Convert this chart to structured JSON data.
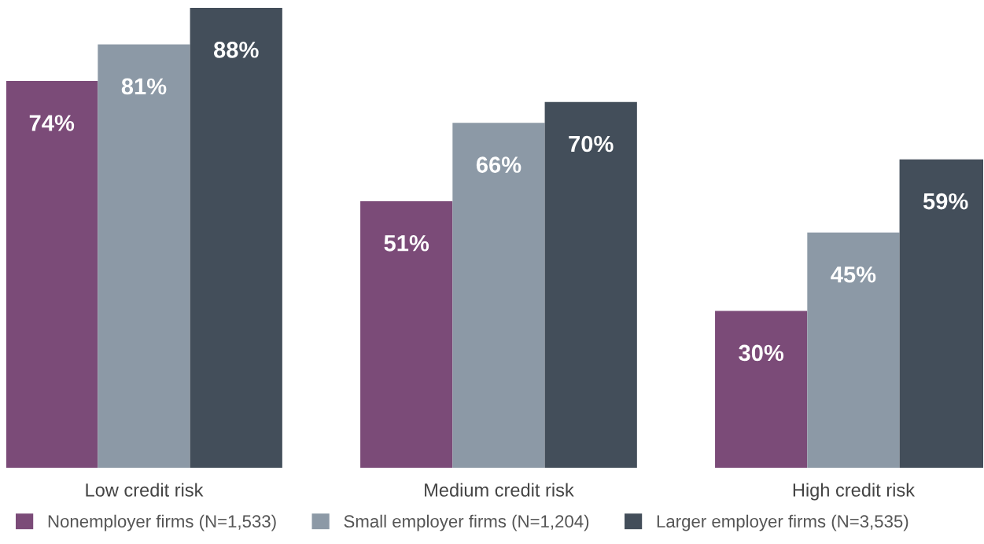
{
  "chart_data": {
    "type": "bar",
    "categories": [
      "Low credit risk",
      "Medium credit risk",
      "High credit risk"
    ],
    "series": [
      {
        "name": "Nonemployer firms (N=1,533)",
        "color": "#7b4b78",
        "values": [
          74,
          51,
          30
        ],
        "value_labels": [
          "74%",
          "51%",
          "30%"
        ]
      },
      {
        "name": "Small employer firms (N=1,204)",
        "color": "#8c99a6",
        "values": [
          81,
          66,
          45
        ],
        "value_labels": [
          "81%",
          "66%",
          "45%"
        ]
      },
      {
        "name": "Larger employer firms (N=3,535)",
        "color": "#434e5a",
        "values": [
          88,
          70,
          59
        ],
        "value_labels": [
          "88%",
          "70%",
          "59%"
        ]
      }
    ],
    "legend": "bottom left",
    "grid": false
  }
}
